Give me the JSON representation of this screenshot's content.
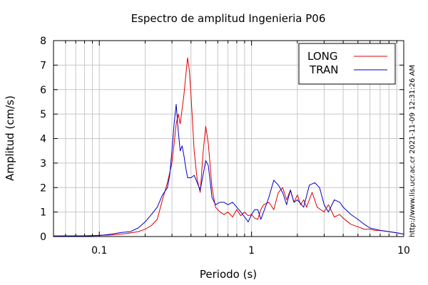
{
  "chart_data": {
    "type": "line",
    "title": "Espectro de amplitud Ingenieria P06",
    "xlabel": "Periodo (s)",
    "ylabel": "Amplitud (cm/s)",
    "xscale": "log",
    "xlim": [
      0.05,
      10
    ],
    "ylim": [
      0,
      8
    ],
    "x_ticks": [
      0.1,
      1,
      10
    ],
    "x_tick_labels": [
      "0.1",
      "1",
      "10"
    ],
    "y_ticks": [
      0,
      1,
      2,
      3,
      4,
      5,
      6,
      7,
      8
    ],
    "y_tick_labels": [
      "0",
      "1",
      "2",
      "3",
      "4",
      "5",
      "6",
      "7",
      "8"
    ],
    "grid": true,
    "legend_position": "top-right",
    "side_annotation": "http://www.lis.ucr.ac.cr  2021-11-09 12:31:26 AM",
    "series": [
      {
        "name": "LONG",
        "color": "#e00000",
        "x": [
          0.05,
          0.08,
          0.1,
          0.12,
          0.15,
          0.18,
          0.2,
          0.22,
          0.24,
          0.26,
          0.28,
          0.3,
          0.31,
          0.32,
          0.33,
          0.34,
          0.35,
          0.36,
          0.37,
          0.38,
          0.39,
          0.4,
          0.42,
          0.44,
          0.46,
          0.48,
          0.5,
          0.52,
          0.55,
          0.58,
          0.62,
          0.66,
          0.7,
          0.75,
          0.8,
          0.85,
          0.9,
          0.95,
          1.0,
          1.05,
          1.1,
          1.15,
          1.2,
          1.3,
          1.4,
          1.5,
          1.6,
          1.7,
          1.8,
          1.9,
          2.0,
          2.1,
          2.2,
          2.3,
          2.5,
          2.7,
          3.0,
          3.2,
          3.5,
          3.8,
          4.0,
          4.5,
          5.0,
          5.5,
          6.0,
          6.5,
          7.0,
          8.0,
          9.0,
          10.0
        ],
        "y": [
          0.02,
          0.03,
          0.05,
          0.06,
          0.12,
          0.2,
          0.3,
          0.45,
          0.7,
          1.5,
          2.2,
          3.0,
          3.8,
          4.6,
          5.0,
          4.6,
          5.2,
          5.8,
          6.6,
          7.3,
          6.8,
          5.8,
          3.5,
          2.3,
          1.8,
          3.4,
          4.5,
          3.8,
          2.0,
          1.2,
          1.0,
          0.9,
          1.0,
          0.8,
          1.1,
          0.85,
          1.0,
          0.85,
          0.9,
          0.75,
          0.7,
          1.1,
          1.3,
          1.4,
          1.1,
          1.8,
          2.0,
          1.5,
          1.9,
          1.4,
          1.7,
          1.3,
          1.5,
          1.2,
          1.8,
          1.2,
          1.0,
          1.3,
          0.8,
          0.9,
          0.75,
          0.5,
          0.4,
          0.3,
          0.3,
          0.25,
          0.25,
          0.2,
          0.15,
          0.1
        ]
      },
      {
        "name": "TRAN",
        "color": "#0000c8",
        "x": [
          0.05,
          0.08,
          0.1,
          0.12,
          0.14,
          0.16,
          0.18,
          0.2,
          0.22,
          0.24,
          0.26,
          0.28,
          0.29,
          0.3,
          0.31,
          0.32,
          0.33,
          0.34,
          0.35,
          0.36,
          0.37,
          0.38,
          0.4,
          0.42,
          0.44,
          0.46,
          0.48,
          0.5,
          0.52,
          0.55,
          0.58,
          0.62,
          0.66,
          0.7,
          0.75,
          0.8,
          0.85,
          0.9,
          0.95,
          1.0,
          1.05,
          1.1,
          1.15,
          1.2,
          1.3,
          1.4,
          1.5,
          1.6,
          1.7,
          1.8,
          1.9,
          2.0,
          2.2,
          2.4,
          2.6,
          2.8,
          3.0,
          3.2,
          3.5,
          3.8,
          4.0,
          4.5,
          5.0,
          5.5,
          6.0,
          6.5,
          7.0,
          8.0,
          9.0,
          10.0
        ],
        "y": [
          0.02,
          0.03,
          0.04,
          0.1,
          0.17,
          0.2,
          0.35,
          0.6,
          0.9,
          1.2,
          1.7,
          2.0,
          2.5,
          3.5,
          4.6,
          5.4,
          4.3,
          3.5,
          3.7,
          3.3,
          2.8,
          2.4,
          2.4,
          2.5,
          2.2,
          1.9,
          2.5,
          3.1,
          2.9,
          1.6,
          1.3,
          1.4,
          1.4,
          1.3,
          1.4,
          1.2,
          1.0,
          0.8,
          0.6,
          0.9,
          1.1,
          1.1,
          0.7,
          1.0,
          1.6,
          2.3,
          2.1,
          1.8,
          1.3,
          1.9,
          1.4,
          1.5,
          1.2,
          2.1,
          2.2,
          2.0,
          1.3,
          1.0,
          1.5,
          1.4,
          1.2,
          0.9,
          0.7,
          0.5,
          0.35,
          0.3,
          0.25,
          0.2,
          0.15,
          0.1
        ]
      }
    ]
  }
}
